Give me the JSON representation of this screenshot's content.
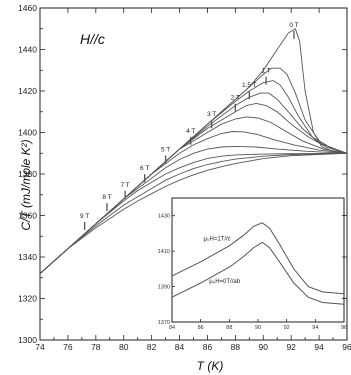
{
  "chart_data": {
    "type": "line",
    "annotation": "H//c",
    "xlabel": "T (K)",
    "ylabel": "C/T (mJ/mole K²)",
    "xlim": [
      74,
      96
    ],
    "ylim": [
      1300,
      1460
    ],
    "xticks": [
      74,
      76,
      78,
      80,
      82,
      84,
      86,
      88,
      90,
      92,
      94,
      96
    ],
    "yticks": [
      1300,
      1320,
      1340,
      1360,
      1380,
      1400,
      1420,
      1440,
      1460
    ],
    "field_markers": [
      {
        "label": "9 T",
        "x": 77.2,
        "y": 1355
      },
      {
        "label": "8 T",
        "x": 78.8,
        "y": 1364
      },
      {
        "label": "7 T",
        "x": 80.1,
        "y": 1370
      },
      {
        "label": "6 T",
        "x": 81.5,
        "y": 1378
      },
      {
        "label": "5 T",
        "x": 83.0,
        "y": 1387
      },
      {
        "label": "4 T",
        "x": 84.8,
        "y": 1396
      },
      {
        "label": "3 T",
        "x": 86.3,
        "y": 1404
      },
      {
        "label": "2 T",
        "x": 88.0,
        "y": 1412
      },
      {
        "label": "1.5 T",
        "x": 89.0,
        "y": 1418
      },
      {
        "label": "1 T",
        "x": 90.2,
        "y": 1425
      },
      {
        "label": "0 T",
        "x": 92.2,
        "y": 1447
      }
    ],
    "series": [
      {
        "x": [
          74,
          76,
          78,
          80,
          82,
          84,
          86,
          88,
          89,
          90,
          91,
          91.8,
          92.3,
          92.6,
          93.0,
          93.6,
          94.2,
          95,
          96
        ],
        "y": [
          1332,
          1344,
          1356,
          1368,
          1380,
          1392,
          1404,
          1416,
          1422,
          1430,
          1440,
          1448,
          1450,
          1444,
          1420,
          1400,
          1393,
          1391,
          1390
        ]
      },
      {
        "x": [
          74,
          76,
          78,
          80,
          82,
          84,
          86,
          88,
          89,
          90,
          90.6,
          91.2,
          91.7,
          92.3,
          93.0,
          94.0,
          95,
          96
        ],
        "y": [
          1332,
          1344,
          1356,
          1368,
          1380,
          1392,
          1404,
          1416,
          1422,
          1428,
          1431,
          1431,
          1428,
          1419,
          1406,
          1396,
          1392,
          1390
        ]
      },
      {
        "x": [
          74,
          76,
          78,
          80,
          82,
          84,
          86,
          88,
          89,
          90,
          90.7,
          91.2,
          91.8,
          92.5,
          93.5,
          94.5,
          96
        ],
        "y": [
          1332,
          1344,
          1356,
          1368,
          1380,
          1392,
          1404,
          1415,
          1420,
          1424,
          1425,
          1423,
          1417,
          1408,
          1398,
          1393,
          1390
        ]
      },
      {
        "x": [
          74,
          76,
          78,
          80,
          82,
          84,
          86,
          88,
          89,
          89.8,
          90.4,
          91.0,
          91.8,
          92.8,
          94,
          96
        ],
        "y": [
          1332,
          1344,
          1356,
          1368,
          1380,
          1392,
          1403,
          1413,
          1417,
          1419,
          1419,
          1416,
          1410,
          1402,
          1395,
          1390
        ]
      },
      {
        "x": [
          74,
          76,
          78,
          80,
          82,
          84,
          86,
          88,
          88.8,
          89.5,
          90.2,
          91.0,
          92.0,
          93.2,
          94.5,
          96
        ],
        "y": [
          1332,
          1344,
          1356,
          1368,
          1380,
          1392,
          1402,
          1410,
          1413,
          1414,
          1413,
          1410,
          1404,
          1398,
          1393,
          1390
        ]
      },
      {
        "x": [
          74,
          76,
          78,
          80,
          82,
          84,
          86,
          87,
          88,
          88.8,
          89.6,
          90.5,
          91.5,
          92.8,
          94.3,
          96
        ],
        "y": [
          1332,
          1344,
          1356,
          1368,
          1380,
          1392,
          1400,
          1404,
          1406.5,
          1407.5,
          1407,
          1405,
          1401,
          1396,
          1392,
          1390
        ]
      },
      {
        "x": [
          74,
          76,
          78,
          80,
          82,
          84,
          85,
          86,
          87,
          87.8,
          88.6,
          89.6,
          90.8,
          92.2,
          94,
          96
        ],
        "y": [
          1332,
          1344,
          1356,
          1368,
          1380,
          1390,
          1394,
          1397,
          1399.5,
          1400.5,
          1400.3,
          1399,
          1396.5,
          1394,
          1391.5,
          1390
        ]
      },
      {
        "x": [
          74,
          76,
          78,
          80,
          82,
          83,
          84,
          85,
          86,
          87,
          88,
          89.5,
          91,
          93,
          96
        ],
        "y": [
          1332,
          1344,
          1356,
          1368,
          1378,
          1383,
          1387,
          1390,
          1392,
          1393,
          1393.3,
          1393,
          1392,
          1391,
          1390
        ]
      },
      {
        "x": [
          74,
          76,
          78,
          80,
          81,
          82,
          83,
          84,
          85,
          86,
          87,
          88,
          90,
          92,
          96
        ],
        "y": [
          1332,
          1344,
          1356,
          1367,
          1372,
          1376,
          1380,
          1383,
          1385.5,
          1387.5,
          1388.6,
          1389.2,
          1389.6,
          1389.8,
          1390
        ]
      },
      {
        "x": [
          74,
          76,
          78,
          79,
          80,
          81,
          82,
          83,
          84,
          85,
          86,
          87,
          88,
          90,
          92,
          96
        ],
        "y": [
          1332,
          1344,
          1355,
          1360,
          1365,
          1369,
          1373,
          1377,
          1380,
          1382.6,
          1384.6,
          1386,
          1387.2,
          1388.6,
          1389.4,
          1390
        ]
      },
      {
        "x": [
          74,
          76,
          77,
          78,
          79,
          80,
          81,
          82,
          83,
          84,
          85,
          86,
          87,
          88,
          90,
          92,
          96
        ],
        "y": [
          1332,
          1344,
          1349,
          1354,
          1358.5,
          1363,
          1367,
          1370.5,
          1374,
          1377,
          1379.6,
          1381.8,
          1383.5,
          1385,
          1387.4,
          1388.8,
          1390
        ]
      }
    ],
    "inset": {
      "xlim": [
        84,
        96
      ],
      "ylim": [
        1370,
        1440
      ],
      "xticks": [
        84,
        86,
        88,
        90,
        92,
        94,
        96
      ],
      "yticks": [
        1370,
        1390,
        1410,
        1430
      ],
      "series": [
        {
          "label": "μ₀H=1T//c",
          "x": [
            84,
            86,
            88,
            89,
            89.7,
            90.3,
            90.8,
            91.5,
            92.5,
            93.5,
            94.5,
            96
          ],
          "y": [
            1396,
            1404,
            1413,
            1419,
            1424,
            1426,
            1423,
            1414,
            1400,
            1390,
            1387,
            1386
          ]
        },
        {
          "label": "μ₀H=0T//ab",
          "x": [
            84,
            86,
            88,
            89,
            89.7,
            90.3,
            90.8,
            91.5,
            92.5,
            93.5,
            94.5,
            96
          ],
          "y": [
            1384,
            1392,
            1401,
            1407,
            1412,
            1415,
            1412,
            1404,
            1392,
            1384,
            1381,
            1380
          ]
        }
      ]
    }
  }
}
